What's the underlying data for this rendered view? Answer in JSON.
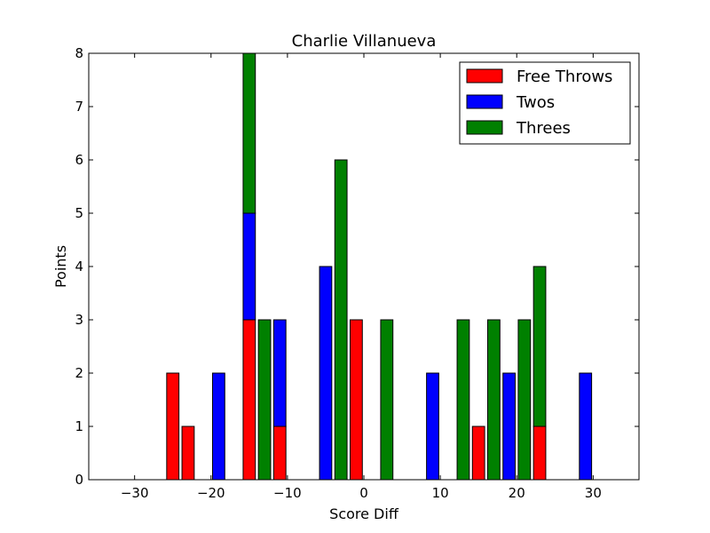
{
  "chart_data": {
    "type": "bar",
    "stacked": true,
    "title": "Charlie Villanueva",
    "xlabel": "Score Diff",
    "ylabel": "Points",
    "xlim": [
      -36,
      36
    ],
    "ylim": [
      0,
      8
    ],
    "xticks": [
      -30,
      -20,
      -10,
      0,
      10,
      20,
      30
    ],
    "xtick_labels": [
      "−30",
      "−20",
      "−10",
      "0",
      "10",
      "20",
      "30"
    ],
    "yticks": [
      0,
      1,
      2,
      3,
      4,
      5,
      6,
      7,
      8
    ],
    "ytick_labels": [
      "0",
      "1",
      "2",
      "3",
      "4",
      "5",
      "6",
      "7",
      "8"
    ],
    "bar_width": 1.6,
    "legend_position": "top-right",
    "x": [
      -35,
      -33,
      -31,
      -29,
      -27,
      -25,
      -23,
      -21,
      -19,
      -17,
      -15,
      -13,
      -11,
      -9,
      -7,
      -5,
      -3,
      -1,
      1,
      3,
      5,
      7,
      9,
      11,
      13,
      15,
      17,
      19,
      21,
      23,
      25,
      27,
      29,
      31,
      33,
      35
    ],
    "series": [
      {
        "name": "Free Throws",
        "color": "#ff0000",
        "values": [
          0,
          0,
          0,
          0,
          0,
          2,
          1,
          0,
          0,
          0,
          3,
          0,
          1,
          0,
          0,
          0,
          0,
          3,
          0,
          0,
          0,
          0,
          0,
          0,
          0,
          1,
          0,
          0,
          0,
          1,
          0,
          0,
          0,
          0,
          0,
          0
        ]
      },
      {
        "name": "Twos",
        "color": "#0000ff",
        "values": [
          0,
          0,
          0,
          0,
          0,
          0,
          0,
          0,
          2,
          0,
          2,
          0,
          2,
          0,
          0,
          4,
          0,
          0,
          0,
          0,
          0,
          0,
          2,
          0,
          0,
          0,
          0,
          2,
          0,
          0,
          0,
          0,
          2,
          0,
          0,
          0
        ]
      },
      {
        "name": "Threes",
        "color": "#008000",
        "values": [
          0,
          0,
          0,
          0,
          0,
          0,
          0,
          0,
          0,
          0,
          3,
          3,
          0,
          0,
          0,
          0,
          6,
          0,
          0,
          3,
          0,
          0,
          0,
          0,
          3,
          0,
          3,
          0,
          3,
          3,
          0,
          0,
          0,
          0,
          0,
          0
        ]
      }
    ],
    "grid": false
  }
}
